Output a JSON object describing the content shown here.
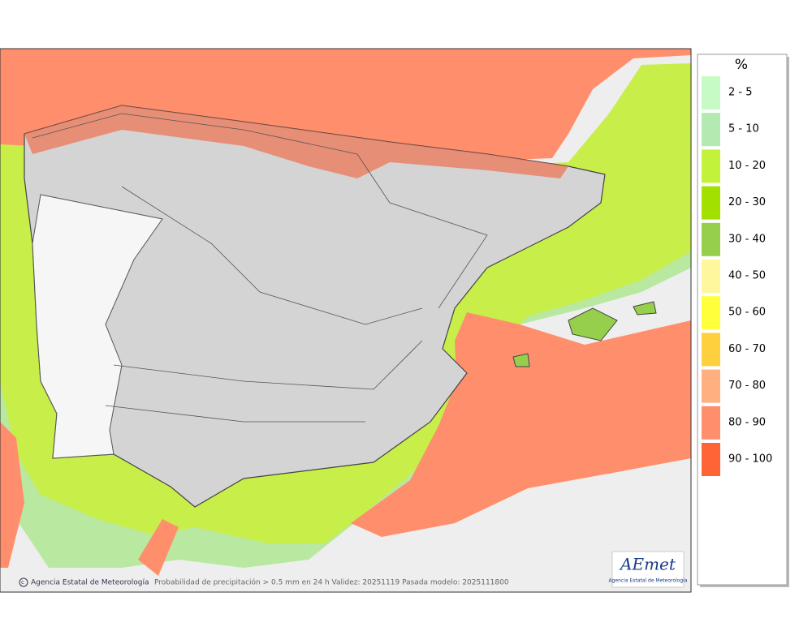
{
  "legend": {
    "title": "%",
    "items": [
      {
        "label": "2 - 5",
        "color": "#c6fbc6"
      },
      {
        "label": "5 - 10",
        "color": "#b2eab2"
      },
      {
        "label": "10 - 20",
        "color": "#c2f23a"
      },
      {
        "label": "20 - 30",
        "color": "#a2e000"
      },
      {
        "label": "30 - 40",
        "color": "#96cf4c"
      },
      {
        "label": "40 - 50",
        "color": "#fff79e"
      },
      {
        "label": "50 - 60",
        "color": "#ffff3c"
      },
      {
        "label": "60 - 70",
        "color": "#ffd03e"
      },
      {
        "label": "70 - 80",
        "color": "#ffaf80"
      },
      {
        "label": "80 - 90",
        "color": "#ff8f6c"
      },
      {
        "label": "90 - 100",
        "color": "#ff6436"
      }
    ]
  },
  "footer": {
    "credit": "Agencia Estatal de Meteorología",
    "caption": "Probabilidad de precipitación > 0.5 mm en 24 h Validez: 20251119 Pasada modelo: 2025111800"
  },
  "logo": {
    "name": "AEmet",
    "subtitle": "Agencia Estatal de Meteorología"
  }
}
